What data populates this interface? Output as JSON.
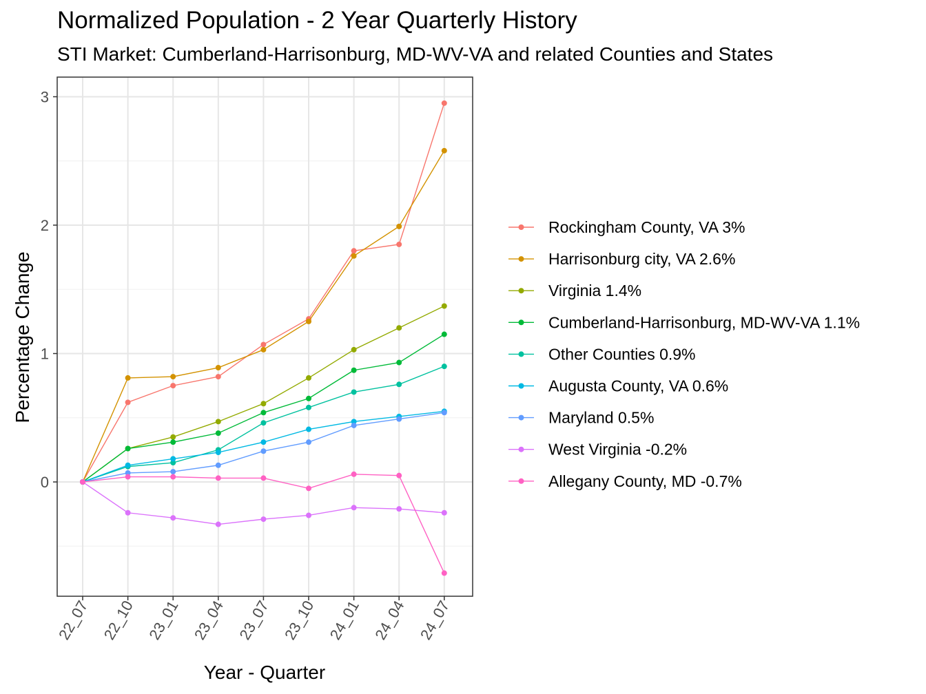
{
  "chart_data": {
    "type": "line",
    "title": "Normalized Population - 2 Year Quarterly History",
    "subtitle": "STI Market: Cumberland-Harrisonburg, MD-WV-VA and related Counties and States",
    "xlabel": "Year - Quarter",
    "ylabel": "Percentage Change",
    "x": [
      "22_07",
      "22_10",
      "23_01",
      "23_04",
      "23_07",
      "23_10",
      "24_01",
      "24_04",
      "24_07"
    ],
    "ylim": [
      -0.9,
      3.15
    ],
    "yticks": [
      0,
      1,
      2,
      3
    ],
    "grid": true,
    "legend_position": "right",
    "series": [
      {
        "name": "Rockingham County, VA 3%",
        "color": "#F8766D",
        "values": [
          0,
          0.62,
          0.75,
          0.82,
          1.07,
          1.27,
          1.8,
          1.85,
          2.95
        ]
      },
      {
        "name": "Harrisonburg city, VA 2.6%",
        "color": "#D39200",
        "values": [
          0,
          0.81,
          0.82,
          0.89,
          1.03,
          1.25,
          1.76,
          1.99,
          2.58
        ]
      },
      {
        "name": "Virginia 1.4%",
        "color": "#93AA00",
        "values": [
          0,
          0.26,
          0.35,
          0.47,
          0.61,
          0.81,
          1.03,
          1.2,
          1.37
        ]
      },
      {
        "name": "Cumberland-Harrisonburg, MD-WV-VA 1.1%",
        "color": "#00BA38",
        "values": [
          0,
          0.26,
          0.31,
          0.38,
          0.54,
          0.65,
          0.87,
          0.93,
          1.15
        ]
      },
      {
        "name": "Other Counties 0.9%",
        "color": "#00C19F",
        "values": [
          0,
          0.12,
          0.15,
          0.25,
          0.46,
          0.58,
          0.7,
          0.76,
          0.9
        ]
      },
      {
        "name": "Augusta County, VA 0.6%",
        "color": "#00B9E3",
        "values": [
          0,
          0.13,
          0.18,
          0.23,
          0.31,
          0.41,
          0.47,
          0.51,
          0.55
        ]
      },
      {
        "name": "Maryland 0.5%",
        "color": "#619CFF",
        "values": [
          0,
          0.07,
          0.08,
          0.13,
          0.24,
          0.31,
          0.44,
          0.49,
          0.54
        ]
      },
      {
        "name": "West Virginia -0.2%",
        "color": "#DB72FB",
        "values": [
          0,
          -0.24,
          -0.28,
          -0.33,
          -0.29,
          -0.26,
          -0.2,
          -0.21,
          -0.24
        ]
      },
      {
        "name": "Allegany County, MD -0.7%",
        "color": "#FF61C3",
        "values": [
          0,
          0.04,
          0.04,
          0.03,
          0.03,
          -0.05,
          0.06,
          0.05,
          -0.71
        ]
      }
    ]
  }
}
